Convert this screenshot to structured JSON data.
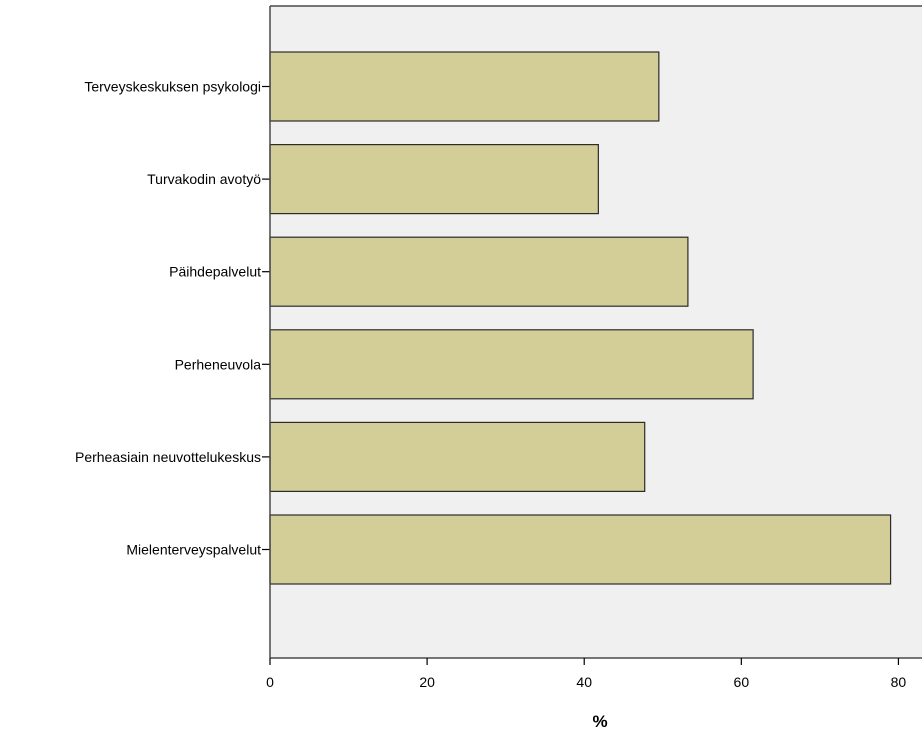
{
  "chart_data": {
    "type": "bar",
    "orientation": "horizontal",
    "categories": [
      "Terveyskeskuksen psykologi",
      "Turvakodin avotyö",
      "Päihdepalvelut",
      "Perheneuvola",
      "Perheasiain neuvottelukeskus",
      "Mielenterveyspalvelut"
    ],
    "values": [
      49.5,
      41.8,
      53.2,
      61.5,
      47.7,
      79.0
    ],
    "xlabel": "%",
    "ylabel": "",
    "xlim": [
      0,
      83
    ],
    "xticks": [
      0,
      20,
      40,
      60,
      80
    ],
    "grid": false,
    "colors": {
      "bar_fill": "#d3cd98",
      "bar_stroke": "#2b2b2b",
      "plot_background": "#f0f0f0",
      "axis": "#4a4a4a"
    }
  }
}
